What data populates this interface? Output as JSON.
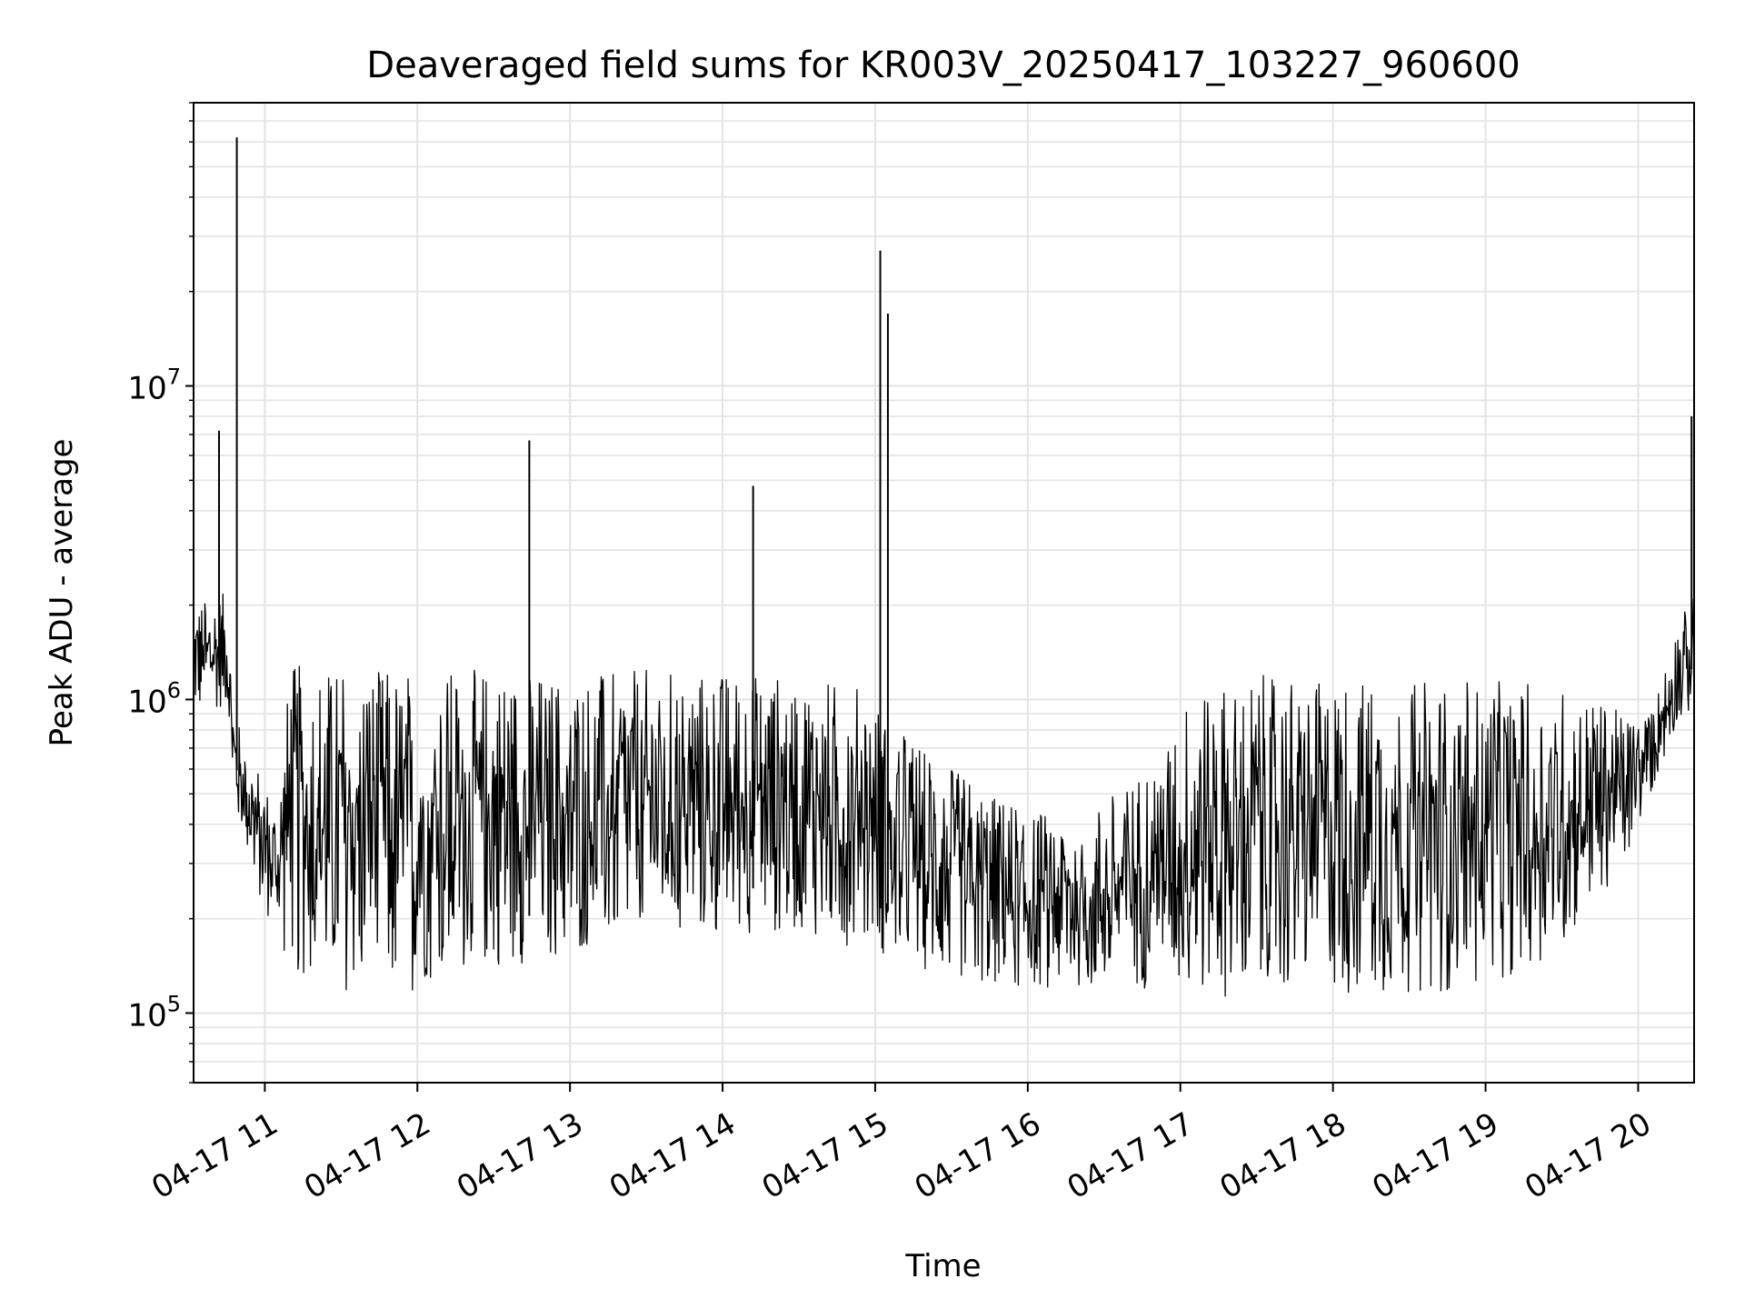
{
  "chart_data": {
    "type": "line",
    "title": "Deaveraged field sums for KR003V_20250417_103227_960600",
    "xlabel": "Time",
    "ylabel": "Peak ADU - average",
    "x_ticks": [
      "04-17 11",
      "04-17 12",
      "04-17 13",
      "04-17 14",
      "04-17 15",
      "04-17 16",
      "04-17 17",
      "04-17 18",
      "04-17 19",
      "04-17 20"
    ],
    "y_ticks": [
      {
        "value": 100000,
        "base": "10",
        "exp": "5"
      },
      {
        "value": 1000000,
        "base": "10",
        "exp": "6"
      },
      {
        "value": 10000000,
        "base": "10",
        "exp": "7"
      }
    ],
    "xlim": [
      "2025-04-17 10:32",
      "2025-04-17 20:22"
    ],
    "ylim": [
      60000,
      80000000
    ],
    "yscale": "log",
    "grid": true,
    "line_color": "#000000",
    "grid_color": "#e3e3e3",
    "envelope": [
      {
        "t": "10:32",
        "low": 900000,
        "high": 2000000
      },
      {
        "t": "10:45",
        "low": 950000,
        "high": 2200000
      },
      {
        "t": "10:48",
        "low": 450000,
        "high": 900000
      },
      {
        "t": "10:58",
        "low": 230000,
        "high": 600000
      },
      {
        "t": "11:05",
        "low": 170000,
        "high": 450000
      },
      {
        "t": "11:10",
        "low": 130000,
        "high": 1300000
      },
      {
        "t": "11:45",
        "low": 110000,
        "high": 1250000
      },
      {
        "t": "12:30",
        "low": 140000,
        "high": 1250000
      },
      {
        "t": "13:00",
        "low": 150000,
        "high": 1200000
      },
      {
        "t": "13:30",
        "low": 170000,
        "high": 1250000
      },
      {
        "t": "14:30",
        "low": 180000,
        "high": 1200000
      },
      {
        "t": "14:55",
        "low": 160000,
        "high": 1100000
      },
      {
        "t": "15:15",
        "low": 140000,
        "high": 750000
      },
      {
        "t": "15:45",
        "low": 120000,
        "high": 500000
      },
      {
        "t": "16:20",
        "low": 120000,
        "high": 420000
      },
      {
        "t": "16:45",
        "low": 120000,
        "high": 600000
      },
      {
        "t": "17:05",
        "low": 115000,
        "high": 1100000
      },
      {
        "t": "17:30",
        "low": 110000,
        "high": 1200000
      },
      {
        "t": "18:30",
        "low": 115000,
        "high": 1150000
      },
      {
        "t": "19:00",
        "low": 120000,
        "high": 1150000
      },
      {
        "t": "19:30",
        "low": 160000,
        "high": 1100000
      },
      {
        "t": "19:55",
        "low": 300000,
        "high": 900000
      },
      {
        "t": "20:05",
        "low": 500000,
        "high": 900000
      },
      {
        "t": "20:15",
        "low": 800000,
        "high": 1700000
      },
      {
        "t": "20:22",
        "low": 900000,
        "high": 2200000
      }
    ],
    "spikes": [
      {
        "t": "10:42",
        "value": 7200000
      },
      {
        "t": "10:49",
        "value": 62000000
      },
      {
        "t": "12:44",
        "value": 6700000
      },
      {
        "t": "14:12",
        "value": 4800000
      },
      {
        "t": "15:02",
        "value": 27000000
      },
      {
        "t": "15:05",
        "value": 17000000
      },
      {
        "t": "20:21",
        "value": 8000000
      }
    ]
  }
}
